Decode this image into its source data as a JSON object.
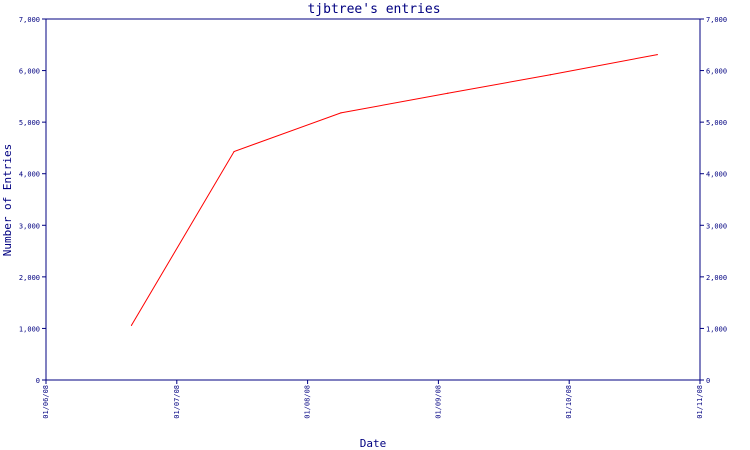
{
  "colors": {
    "axis": "#000080",
    "series": "#ff0000",
    "text": "#000080",
    "background": "#ffffff"
  },
  "chart_data": {
    "type": "line",
    "title": "tjbtree's entries",
    "xlabel": "Date",
    "ylabel": "Number of Entries",
    "x_ticks": [
      "01/06/08",
      "01/07/08",
      "01/08/08",
      "01/09/08",
      "01/10/08",
      "01/11/08"
    ],
    "y_ticks": [
      "0",
      "1,000",
      "2,000",
      "3,000",
      "4,000",
      "5,000",
      "6,000",
      "7,000"
    ],
    "ylim": [
      0,
      7000
    ],
    "xlim": [
      "2008-06-01",
      "2008-11-01"
    ],
    "grid": false,
    "legend": "none",
    "right_axis": true,
    "series": [
      {
        "x": [
          "2008-06-21",
          "2008-07-15",
          "2008-08-09",
          "2008-09-03",
          "2008-09-27",
          "2008-10-22"
        ],
        "values": [
          1060,
          4430,
          5180,
          5560,
          5920,
          6310
        ]
      }
    ]
  }
}
